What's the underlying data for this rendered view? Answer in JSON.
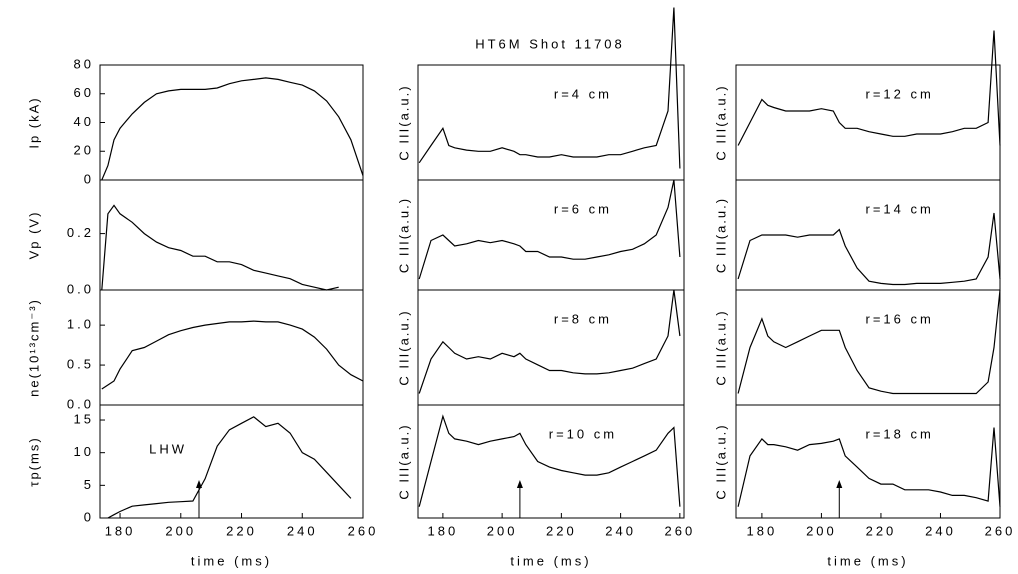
{
  "title": "HT6M Shot 11708",
  "chart_data": [
    {
      "type": "line",
      "ylabel": "Ip (kA)",
      "color": "#000000",
      "x": [
        174,
        176,
        178,
        180,
        184,
        188,
        192,
        196,
        200,
        204,
        208,
        212,
        216,
        220,
        224,
        228,
        232,
        236,
        240,
        244,
        248,
        252,
        256,
        260
      ],
      "values": [
        0,
        10,
        28,
        36,
        46,
        54,
        60,
        62,
        63,
        63,
        63,
        64,
        67,
        69,
        70,
        71,
        70,
        68,
        66,
        62,
        55,
        44,
        28,
        3
      ],
      "xlim": [
        173.4,
        260
      ],
      "ylim": [
        0,
        80
      ],
      "yticks": [
        0,
        20,
        40,
        60,
        80
      ]
    },
    {
      "type": "line",
      "ylabel": "Vp (V)",
      "color": "#000000",
      "x": [
        174,
        176,
        178,
        180,
        184,
        188,
        192,
        196,
        200,
        204,
        208,
        212,
        216,
        220,
        224,
        228,
        232,
        236,
        240,
        244,
        248,
        252,
        256,
        260
      ],
      "values": [
        0.0,
        0.27,
        0.3,
        0.27,
        0.24,
        0.2,
        0.17,
        0.15,
        0.14,
        0.12,
        0.12,
        0.1,
        0.1,
        0.09,
        0.07,
        0.06,
        0.05,
        0.04,
        0.02,
        0.01,
        0.0,
        0.01,
        null,
        null
      ],
      "xlim": [
        173.4,
        260
      ],
      "ylim": [
        0,
        0.39
      ],
      "yticks": [
        {
          "value": 0,
          "label": "0.0"
        },
        0.2
      ]
    },
    {
      "type": "line",
      "ylabel": "ne(10¹³cm⁻³)",
      "color": "#000000",
      "x": [
        174,
        176,
        178,
        180,
        184,
        188,
        192,
        196,
        200,
        204,
        208,
        212,
        216,
        220,
        224,
        228,
        232,
        236,
        240,
        244,
        248,
        252,
        256,
        260
      ],
      "values": [
        0.2,
        0.25,
        0.3,
        0.45,
        0.68,
        0.72,
        0.8,
        0.88,
        0.93,
        0.97,
        1.0,
        1.02,
        1.04,
        1.04,
        1.05,
        1.04,
        1.04,
        1.0,
        0.95,
        0.85,
        0.7,
        0.5,
        0.38,
        0.3
      ],
      "xlim": [
        173.4,
        260
      ],
      "ylim": [
        0,
        1.44
      ],
      "yticks": [
        {
          "value": 0,
          "label": "0.0"
        },
        0.5,
        {
          "value": 1,
          "label": "1.0"
        }
      ]
    },
    {
      "type": "line",
      "ylabel": "τp(ms)",
      "color": "#000000",
      "annotation": "LHW",
      "annotation_x": 206,
      "x": [
        174,
        176,
        178,
        180,
        184,
        188,
        192,
        196,
        200,
        204,
        208,
        212,
        216,
        220,
        224,
        228,
        232,
        236,
        240,
        244,
        248,
        252,
        256,
        260
      ],
      "values": [
        null,
        0,
        0.5,
        1,
        1.8,
        2,
        2.2,
        2.4,
        2.5,
        2.6,
        6,
        11,
        13.5,
        14.5,
        15.5,
        14,
        14.5,
        13,
        10,
        9,
        7,
        5,
        3,
        null
      ],
      "xlim": [
        173.4,
        260
      ],
      "ylim": [
        0,
        17.3
      ],
      "yticks": [
        0,
        5,
        10,
        15
      ],
      "xticks": [
        180,
        200,
        220,
        240,
        260
      ],
      "xlabel": "time (ms)"
    },
    {
      "type": "line",
      "ylabel": "C III(a.u.)",
      "annotation": "r=4 cm",
      "color": "#000000",
      "x": [
        172,
        176,
        180,
        182,
        184,
        188,
        192,
        196,
        200,
        204,
        206,
        208,
        212,
        216,
        220,
        224,
        228,
        232,
        236,
        240,
        244,
        248,
        252,
        256,
        258,
        260
      ],
      "values": [
        0.15,
        0.3,
        0.45,
        0.3,
        0.28,
        0.26,
        0.25,
        0.25,
        0.28,
        0.25,
        0.22,
        0.22,
        0.2,
        0.2,
        0.22,
        0.2,
        0.2,
        0.2,
        0.22,
        0.22,
        0.25,
        0.28,
        0.3,
        0.6,
        1.5,
        0.1
      ],
      "xlim": [
        171.6,
        261.4
      ],
      "ylim": [
        0,
        1
      ]
    },
    {
      "type": "line",
      "ylabel": "C III(a.u.)",
      "annotation": "r=6 cm",
      "color": "#000000",
      "x": [
        172,
        176,
        180,
        182,
        184,
        188,
        192,
        196,
        200,
        204,
        206,
        208,
        212,
        216,
        220,
        224,
        228,
        232,
        236,
        240,
        244,
        248,
        252,
        256,
        258,
        260
      ],
      "values": [
        0.1,
        0.45,
        0.5,
        0.45,
        0.4,
        0.42,
        0.45,
        0.43,
        0.45,
        0.42,
        0.4,
        0.35,
        0.35,
        0.3,
        0.3,
        0.28,
        0.28,
        0.3,
        0.32,
        0.35,
        0.37,
        0.42,
        0.5,
        0.75,
        1.0,
        0.3
      ],
      "xlim": [
        171.6,
        261.4
      ],
      "ylim": [
        0,
        1
      ]
    },
    {
      "type": "line",
      "ylabel": "C III(a.u.)",
      "annotation": "r=8 cm",
      "color": "#000000",
      "x": [
        172,
        176,
        180,
        182,
        184,
        188,
        192,
        196,
        200,
        204,
        206,
        208,
        212,
        216,
        220,
        224,
        228,
        232,
        236,
        240,
        244,
        248,
        252,
        256,
        258,
        260
      ],
      "values": [
        0.1,
        0.4,
        0.55,
        0.5,
        0.45,
        0.4,
        0.42,
        0.4,
        0.45,
        0.42,
        0.45,
        0.4,
        0.35,
        0.3,
        0.3,
        0.28,
        0.27,
        0.27,
        0.28,
        0.3,
        0.32,
        0.36,
        0.4,
        0.6,
        1.0,
        0.6
      ],
      "xlim": [
        171.6,
        261.4
      ],
      "ylim": [
        0,
        1
      ]
    },
    {
      "type": "line",
      "ylabel": "C III(a.u.)",
      "annotation": "r=10 cm",
      "color": "#000000",
      "annotation_x": 206,
      "x": [
        172,
        176,
        180,
        182,
        184,
        188,
        192,
        196,
        200,
        204,
        206,
        208,
        212,
        216,
        220,
        224,
        228,
        232,
        236,
        240,
        244,
        248,
        252,
        256,
        258,
        260
      ],
      "values": [
        0.1,
        0.5,
        0.9,
        0.75,
        0.7,
        0.68,
        0.65,
        0.68,
        0.7,
        0.72,
        0.75,
        0.65,
        0.5,
        0.45,
        0.42,
        0.4,
        0.38,
        0.38,
        0.4,
        0.45,
        0.5,
        0.55,
        0.6,
        0.75,
        0.8,
        0.1
      ],
      "xlim": [
        171.6,
        261.4
      ],
      "ylim": [
        0,
        1
      ],
      "xticks": [
        180,
        200,
        220,
        240,
        260
      ],
      "xlabel": "time (ms)"
    },
    {
      "type": "line",
      "ylabel": "C III(a.u.)",
      "annotation": "r=12 cm",
      "color": "#000000",
      "x": [
        172,
        176,
        180,
        182,
        184,
        188,
        192,
        196,
        200,
        204,
        206,
        208,
        212,
        216,
        220,
        224,
        228,
        232,
        236,
        240,
        244,
        248,
        252,
        256,
        258,
        260
      ],
      "values": [
        0.3,
        0.5,
        0.7,
        0.65,
        0.63,
        0.6,
        0.6,
        0.6,
        0.62,
        0.6,
        0.5,
        0.45,
        0.45,
        0.42,
        0.4,
        0.38,
        0.38,
        0.4,
        0.4,
        0.4,
        0.42,
        0.45,
        0.45,
        0.5,
        1.3,
        0.3
      ],
      "xlim": [
        171.3,
        260
      ],
      "ylim": [
        0,
        1
      ]
    },
    {
      "type": "line",
      "ylabel": "C III(a.u.)",
      "annotation": "r=14 cm",
      "color": "#000000",
      "x": [
        172,
        176,
        180,
        182,
        184,
        188,
        192,
        196,
        200,
        204,
        206,
        208,
        212,
        216,
        220,
        224,
        228,
        232,
        236,
        240,
        244,
        248,
        252,
        256,
        258,
        260
      ],
      "values": [
        0.1,
        0.45,
        0.5,
        0.5,
        0.5,
        0.5,
        0.48,
        0.5,
        0.5,
        0.5,
        0.55,
        0.4,
        0.2,
        0.08,
        0.06,
        0.05,
        0.05,
        0.06,
        0.06,
        0.06,
        0.07,
        0.08,
        0.1,
        0.3,
        0.7,
        0.1
      ],
      "xlim": [
        171.3,
        260
      ],
      "ylim": [
        0,
        1
      ]
    },
    {
      "type": "line",
      "ylabel": "C III(a.u.)",
      "annotation": "r=16 cm",
      "color": "#000000",
      "x": [
        172,
        176,
        180,
        182,
        184,
        188,
        192,
        196,
        200,
        204,
        206,
        208,
        212,
        216,
        220,
        224,
        228,
        232,
        236,
        240,
        244,
        248,
        252,
        256,
        258,
        260
      ],
      "values": [
        0.1,
        0.5,
        0.75,
        0.6,
        0.55,
        0.5,
        0.55,
        0.6,
        0.65,
        0.65,
        0.65,
        0.5,
        0.3,
        0.15,
        0.12,
        0.1,
        0.1,
        0.1,
        0.1,
        0.1,
        0.1,
        0.1,
        0.1,
        0.2,
        0.5,
        1.0
      ],
      "xlim": [
        171.3,
        260
      ],
      "ylim": [
        0,
        1
      ]
    },
    {
      "type": "line",
      "ylabel": "C III(a.u.)",
      "annotation": "r=18 cm",
      "color": "#000000",
      "annotation_x": 206,
      "x": [
        172,
        176,
        180,
        182,
        184,
        188,
        192,
        196,
        200,
        204,
        206,
        208,
        212,
        216,
        220,
        224,
        228,
        232,
        236,
        240,
        244,
        248,
        252,
        256,
        258,
        260
      ],
      "values": [
        0.1,
        0.55,
        0.7,
        0.65,
        0.65,
        0.63,
        0.6,
        0.65,
        0.66,
        0.68,
        0.7,
        0.55,
        0.45,
        0.35,
        0.3,
        0.3,
        0.25,
        0.25,
        0.25,
        0.23,
        0.2,
        0.2,
        0.18,
        0.15,
        0.8,
        0.1
      ],
      "xlim": [
        171.3,
        260
      ],
      "ylim": [
        0,
        1
      ],
      "xticks": [
        180,
        200,
        220,
        240,
        260
      ],
      "xlabel": "time (ms)"
    }
  ]
}
